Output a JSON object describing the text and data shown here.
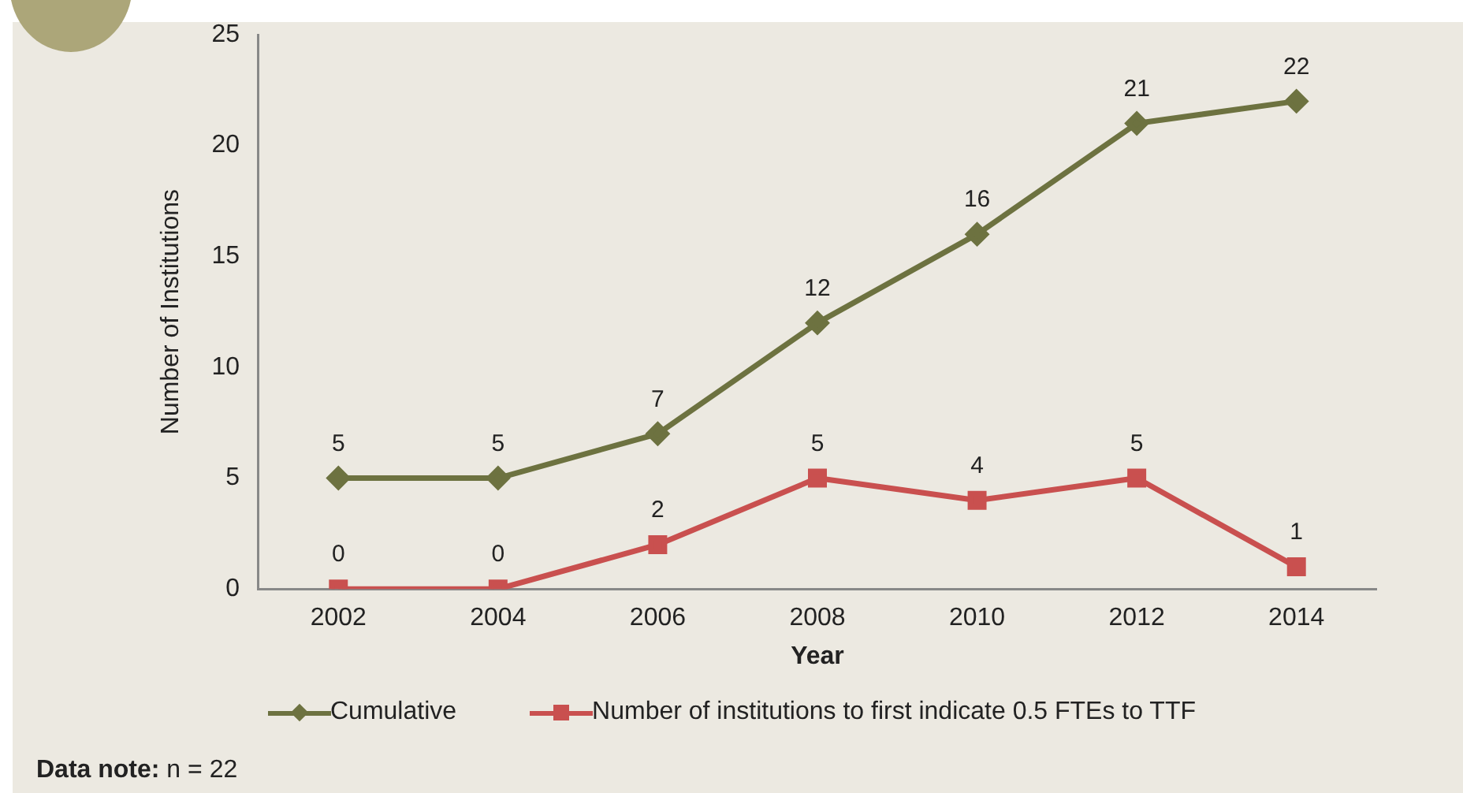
{
  "chart_data": {
    "type": "line",
    "xlabel": "Year",
    "ylabel": "Number of Institutions",
    "categories": [
      "2002",
      "2004",
      "2006",
      "2008",
      "2010",
      "2012",
      "2014"
    ],
    "series": [
      {
        "name": "Cumulative",
        "color": "#6d7240",
        "marker": "diamond",
        "values": [
          5,
          5,
          7,
          12,
          16,
          21,
          22
        ]
      },
      {
        "name": "Number of institutions to first indicate 0.5 FTEs to TTF",
        "color": "#c9504f",
        "marker": "square",
        "values": [
          0,
          0,
          2,
          5,
          4,
          5,
          1
        ]
      }
    ],
    "ylim": [
      0,
      25
    ],
    "yticks": [
      0,
      5,
      10,
      15,
      20,
      25
    ],
    "grid": false,
    "legend": "bottom",
    "data_labels": true,
    "line_style": "solid",
    "annotations": [
      "Data note: n = 22"
    ]
  }
}
